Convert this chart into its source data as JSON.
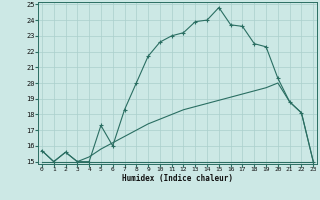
{
  "xlabel": "Humidex (Indice chaleur)",
  "xlim": [
    -0.3,
    23.3
  ],
  "ylim": [
    14.85,
    25.15
  ],
  "xticks": [
    0,
    1,
    2,
    3,
    4,
    5,
    6,
    7,
    8,
    9,
    10,
    11,
    12,
    13,
    14,
    15,
    16,
    17,
    18,
    19,
    20,
    21,
    22,
    23
  ],
  "yticks": [
    15,
    16,
    17,
    18,
    19,
    20,
    21,
    22,
    23,
    24,
    25
  ],
  "bg_color": "#cce8e5",
  "grid_color": "#aacfcc",
  "line_color": "#2a6e62",
  "line1_x": [
    0,
    1,
    2,
    3,
    4,
    5,
    6,
    7,
    8,
    9,
    10,
    11,
    12,
    13,
    14,
    15,
    16,
    17,
    18,
    19,
    20,
    21,
    22,
    23
  ],
  "line1_y": [
    15.7,
    15.0,
    15.6,
    15.0,
    15.0,
    17.3,
    16.0,
    18.3,
    20.0,
    21.7,
    22.6,
    23.0,
    23.2,
    23.9,
    24.0,
    24.8,
    23.7,
    23.6,
    22.5,
    22.3,
    20.3,
    18.8,
    18.1,
    15.0
  ],
  "line2_x": [
    0,
    1,
    2,
    3,
    4,
    5,
    6,
    7,
    8,
    9,
    10,
    11,
    12,
    13,
    14,
    15,
    16,
    17,
    18,
    19,
    20,
    21,
    22,
    23
  ],
  "line2_y": [
    15.7,
    15.0,
    15.6,
    15.0,
    15.3,
    15.8,
    16.2,
    16.6,
    17.0,
    17.4,
    17.7,
    18.0,
    18.3,
    18.5,
    18.7,
    18.9,
    19.1,
    19.3,
    19.5,
    19.7,
    20.0,
    18.8,
    18.1,
    15.0
  ],
  "line3_x": [
    0,
    1,
    2,
    3,
    4,
    5,
    6,
    7,
    8,
    9,
    10,
    11,
    12,
    13,
    14,
    15,
    16,
    17,
    18,
    19,
    20,
    21,
    22,
    23
  ],
  "line3_y": [
    15.0,
    15.0,
    15.0,
    15.0,
    15.0,
    15.0,
    15.0,
    15.0,
    15.0,
    15.0,
    15.0,
    15.0,
    15.0,
    15.0,
    15.0,
    15.0,
    15.0,
    15.0,
    15.0,
    15.0,
    15.0,
    15.0,
    15.0,
    15.0
  ]
}
